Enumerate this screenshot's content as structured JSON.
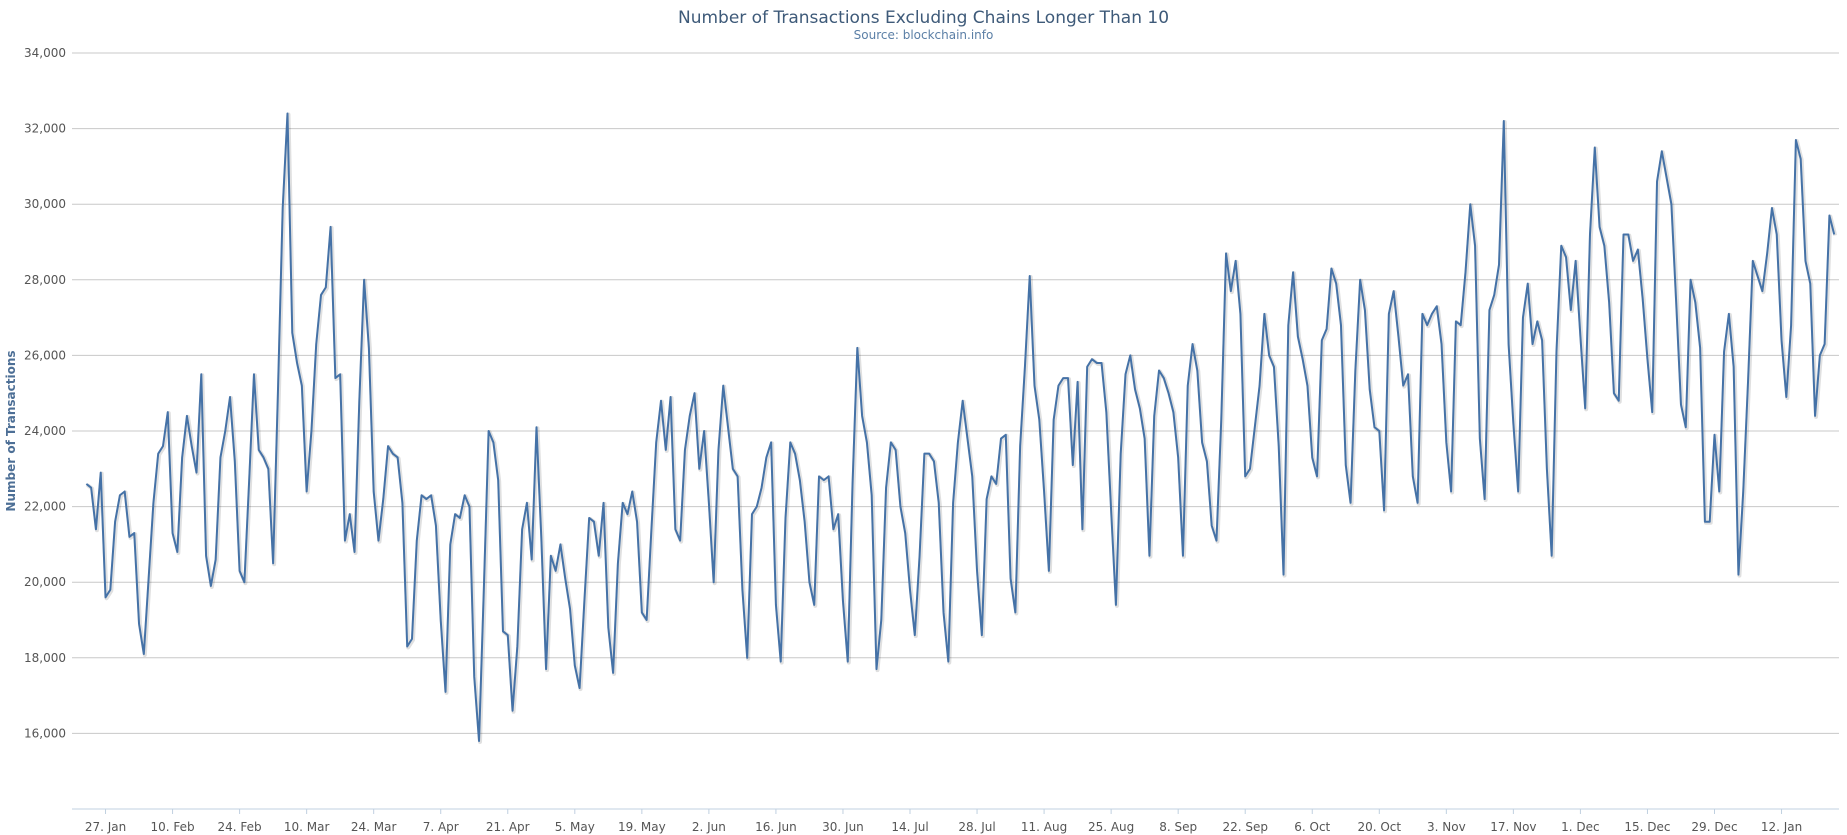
{
  "chart_data": {
    "type": "line",
    "title": "Number of Transactions Excluding Chains Longer Than 10",
    "subtitle": "Source: blockchain.info",
    "xlabel": "",
    "ylabel": "Number of Transactions",
    "ylim": [
      14000,
      34000
    ],
    "yticks": [
      16000,
      18000,
      20000,
      22000,
      24000,
      26000,
      28000,
      30000,
      32000,
      34000
    ],
    "ytick_labels": [
      "16,000",
      "18,000",
      "20,000",
      "22,000",
      "24,000",
      "26,000",
      "28,000",
      "30,000",
      "32,000",
      "34,000"
    ],
    "xlim": [
      "2014-01-20",
      "2015-01-24"
    ],
    "xticks": [
      "2014-01-27",
      "2014-02-10",
      "2014-02-24",
      "2014-03-10",
      "2014-03-24",
      "2014-04-07",
      "2014-04-21",
      "2014-05-05",
      "2014-05-19",
      "2014-06-02",
      "2014-06-16",
      "2014-06-30",
      "2014-07-14",
      "2014-07-28",
      "2014-08-11",
      "2014-08-25",
      "2014-09-08",
      "2014-09-22",
      "2014-10-06",
      "2014-10-20",
      "2014-11-03",
      "2014-11-17",
      "2014-12-01",
      "2014-12-15",
      "2014-12-29",
      "2015-01-12"
    ],
    "xtick_labels": [
      "27. Jan",
      "10. Feb",
      "24. Feb",
      "10. Mar",
      "24. Mar",
      "7. Apr",
      "21. Apr",
      "5. May",
      "19. May",
      "2. Jun",
      "16. Jun",
      "30. Jun",
      "14. Jul",
      "28. Jul",
      "11. Aug",
      "25. Aug",
      "8. Sep",
      "22. Sep",
      "6. Oct",
      "20. Oct",
      "3. Nov",
      "17. Nov",
      "1. Dec",
      "15. Dec",
      "29. Dec",
      "12. Jan"
    ],
    "grid": true,
    "legend": false,
    "line_color": "#4572a7",
    "series": [
      {
        "x_start": "2014-01-23",
        "x_step_days": 1,
        "values": [
          22600,
          22500,
          21400,
          22900,
          19600,
          19800,
          21600,
          22300,
          22400,
          21200,
          21300,
          18900,
          18100,
          20100,
          22100,
          23400,
          23600,
          24500,
          21300,
          20800,
          23300,
          24400,
          23600,
          22900,
          25500,
          20700,
          19900,
          20600,
          23300,
          24000,
          24900,
          23200,
          20300,
          20000,
          22700,
          25500,
          23500,
          23300,
          23000,
          20500,
          25000,
          29900,
          32400,
          26600,
          25800,
          25200,
          22400,
          24000,
          26300,
          27600,
          27800,
          29400,
          25400,
          25500,
          21100,
          21800,
          20800,
          24800,
          28000,
          26200,
          22400,
          21100,
          22200,
          23600,
          23400,
          23300,
          22100,
          18300,
          18500,
          21100,
          22300,
          22200,
          22300,
          21500,
          19000,
          17100,
          21000,
          21800,
          21700,
          22300,
          22000,
          17500,
          15800,
          19800,
          24000,
          23700,
          22700,
          18700,
          18600,
          16600,
          18300,
          21400,
          22100,
          20600,
          24100,
          21200,
          17700,
          20700,
          20300,
          21000,
          20100,
          19300,
          17800,
          17200,
          19500,
          21700,
          21600,
          20700,
          22100,
          18800,
          17600,
          20500,
          22100,
          21800,
          22400,
          21600,
          19200,
          19000,
          21400,
          23700,
          24800,
          23500,
          24900,
          21400,
          21100,
          23500,
          24400,
          25000,
          23000,
          24000,
          22100,
          20000,
          23500,
          25200,
          24100,
          23000,
          22800,
          19800,
          18000,
          21800,
          22000,
          22500,
          23300,
          23700,
          19400,
          17900,
          21700,
          23700,
          23400,
          22700,
          21600,
          20000,
          19400,
          22800,
          22700,
          22800,
          21400,
          21800,
          19500,
          17900,
          22600,
          26200,
          24400,
          23700,
          22300,
          17700,
          19000,
          22500,
          23700,
          23500,
          22000,
          21300,
          19800,
          18600,
          20700,
          23400,
          23400,
          23200,
          22100,
          19200,
          17900,
          22100,
          23700,
          24800,
          23800,
          22800,
          20300,
          18600,
          22200,
          22800,
          22600,
          23800,
          23900,
          20100,
          19200,
          23600,
          25700,
          28100,
          25200,
          24300,
          22400,
          20300,
          24300,
          25200,
          25400,
          25400,
          23100,
          25300,
          21400,
          25700,
          25900,
          25800,
          25800,
          24500,
          21900,
          19400,
          23400,
          25500,
          26000,
          25100,
          24600,
          23800,
          20700,
          24400,
          25600,
          25400,
          25000,
          24500,
          23300,
          20700,
          25200,
          26300,
          25600,
          23700,
          23200,
          21500,
          21100,
          24300,
          28700,
          27700,
          28500,
          27100,
          22800,
          23000,
          24100,
          25200,
          27100,
          26000,
          25700,
          23600,
          20200,
          26800,
          28200,
          26500,
          25900,
          25200,
          23300,
          22800,
          26400,
          26700,
          28300,
          27900,
          26800,
          23100,
          22100,
          25600,
          28000,
          27200,
          25100,
          24100,
          24000,
          21900,
          27100,
          27700,
          26500,
          25200,
          25500,
          22800,
          22100,
          27100,
          26800,
          27100,
          27300,
          26300,
          23700,
          22400,
          26900,
          26800,
          28200,
          30000,
          28900,
          23800,
          22200,
          27200,
          27600,
          28400,
          32200,
          26300,
          24200,
          22400,
          27000,
          27900,
          26300,
          26900,
          26400,
          23000,
          20700,
          26100,
          28900,
          28600,
          27200,
          28500,
          26500,
          24600,
          29200,
          31500,
          29400,
          28900,
          27400,
          25000,
          24800,
          29200,
          29200,
          28500,
          28800,
          27500,
          25900,
          24500,
          30600,
          31400,
          30700,
          30000,
          27400,
          24700,
          24100,
          28000,
          27400,
          26200,
          21600,
          21600,
          23900,
          22400,
          26100,
          27100,
          25700,
          20200,
          22400,
          25300,
          28500,
          28100,
          27700,
          28700,
          29900,
          29200,
          26400,
          24900,
          26800,
          31700,
          31200,
          28500,
          27900,
          24400,
          26000,
          26300,
          29700,
          29200
        ]
      }
    ]
  }
}
